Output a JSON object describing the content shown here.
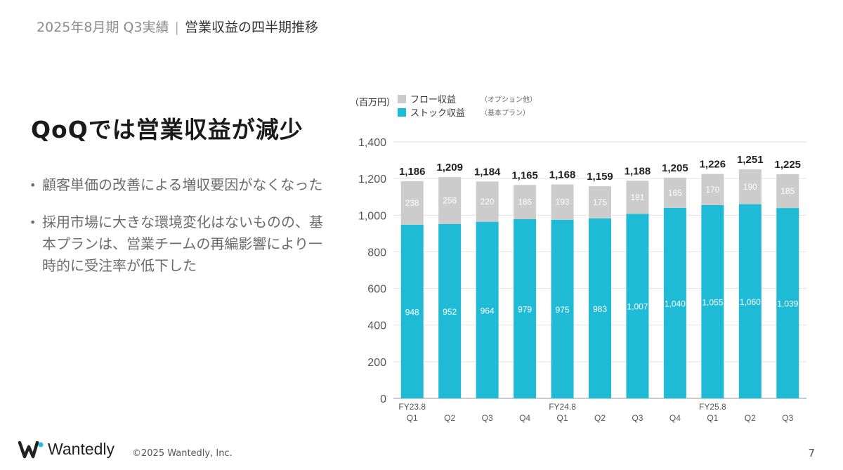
{
  "header": {
    "period": "2025年8月期 Q3実績",
    "separator": "|",
    "topic": "営業収益の四半期推移"
  },
  "headline": "QoQでは営業収益が減少",
  "bullets": [
    "顧客単価の改善による増収要因がなくなった",
    "採用市場に大きな環境変化はないものの、基本プランは、営業チームの再編影響により一時的に受注率が低下した"
  ],
  "footer": {
    "brand": "Wantedly",
    "copyright": "©2025 Wantedly, Inc.",
    "page": "7"
  },
  "colors": {
    "stock": "#1fbad6",
    "flow": "#cccccc",
    "axis_text": "#555555",
    "grid": "#e2e2e2"
  },
  "chart_data": {
    "type": "bar",
    "stacked": true,
    "unit_label": "（百万円）",
    "categories": [
      "Q1",
      "Q2",
      "Q3",
      "Q4",
      "Q1",
      "Q2",
      "Q3",
      "Q4",
      "Q1",
      "Q2",
      "Q3"
    ],
    "fiscal_year_labels": [
      "FY23.8",
      "",
      "",
      "",
      "FY24.8",
      "",
      "",
      "",
      "FY25.8",
      "",
      ""
    ],
    "series": [
      {
        "name": "ストック収益",
        "note": "（基本プラン）",
        "values": [
          948,
          952,
          964,
          979,
          975,
          983,
          1007,
          1040,
          1055,
          1060,
          1039
        ]
      },
      {
        "name": "フロー収益",
        "note": "（オプション他）",
        "values": [
          238,
          256,
          220,
          186,
          193,
          175,
          181,
          165,
          170,
          190,
          185
        ]
      }
    ],
    "totals": [
      1186,
      1209,
      1184,
      1165,
      1168,
      1159,
      1188,
      1205,
      1226,
      1251,
      1225
    ],
    "ylim": [
      0,
      1400
    ],
    "yticks": [
      0,
      200,
      400,
      600,
      800,
      1000,
      1200,
      1400
    ],
    "grid": true,
    "legend_position": "top-left"
  }
}
